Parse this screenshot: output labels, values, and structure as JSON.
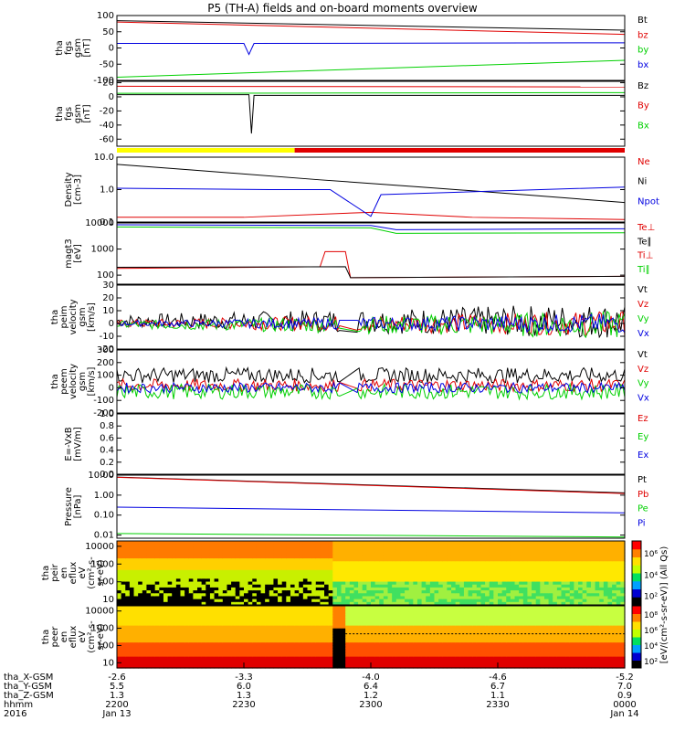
{
  "title": "P5 (TH-A) fields and on-board moments overview",
  "colors": {
    "black": "#000000",
    "red": "#e00000",
    "green": "#00d000",
    "blue": "#0000e0",
    "yellow": "#ffff00"
  },
  "chart_data": [
    {
      "type": "line",
      "id": "fgs_gsm",
      "ylabel": [
        "tha",
        "fgs",
        "gsm",
        "[nT]"
      ],
      "ylim": [
        -100,
        100
      ],
      "yticks": [
        -100,
        -50,
        0,
        50,
        100
      ],
      "legend": [
        "Bt",
        "bz",
        "by",
        "bx"
      ],
      "legend_colors": [
        "black",
        "red",
        "green",
        "blue"
      ],
      "series": [
        {
          "name": "Bt",
          "color": "black",
          "x": [
            0,
            1
          ],
          "y": [
            84,
            55
          ]
        },
        {
          "name": "bz",
          "color": "red",
          "x": [
            0,
            1
          ],
          "y": [
            80,
            42
          ]
        },
        {
          "name": "by",
          "color": "green",
          "x": [
            0,
            1
          ],
          "y": [
            -90,
            -38
          ]
        },
        {
          "name": "bx",
          "color": "blue",
          "x": [
            0,
            0.25,
            0.26,
            0.27,
            1
          ],
          "y": [
            14,
            14,
            -20,
            14,
            16
          ]
        }
      ]
    },
    {
      "type": "line",
      "id": "fgs_gse",
      "ylabel": [
        "tha",
        "fgs",
        "gsm",
        "[nT]"
      ],
      "ylim": [
        -70,
        22
      ],
      "yticks": [
        -60,
        -40,
        -20,
        0,
        20
      ],
      "legend": [
        "Bz",
        "By",
        "Bx"
      ],
      "legend_colors": [
        "black",
        "red",
        "green"
      ],
      "series": [
        {
          "name": "Bz",
          "color": "red",
          "x": [
            0,
            1
          ],
          "y": [
            15,
            14
          ]
        },
        {
          "name": "By",
          "color": "green",
          "x": [
            0,
            1
          ],
          "y": [
            5,
            6
          ]
        },
        {
          "name": "Bx",
          "color": "black",
          "x": [
            0,
            0.26,
            0.265,
            0.27,
            1
          ],
          "y": [
            3,
            3,
            -52,
            2,
            2
          ]
        }
      ]
    },
    {
      "type": "line",
      "id": "density",
      "log": true,
      "ylabel": [
        "Density",
        "[cm-3]"
      ],
      "ylim": [
        0.1,
        10
      ],
      "yticks": [
        "0.1",
        "1.0",
        "10.0"
      ],
      "ytick_values": [
        0.1,
        1,
        10
      ],
      "legend": [
        "Ne",
        "Ni",
        "Npot"
      ],
      "legend_colors": [
        "red",
        "black",
        "blue"
      ],
      "series": [
        {
          "name": "Ne",
          "color": "red",
          "x": [
            0,
            0.25,
            0.5,
            0.7,
            1
          ],
          "y": [
            0.14,
            0.14,
            0.2,
            0.14,
            0.12
          ]
        },
        {
          "name": "Ni",
          "color": "black",
          "x": [
            0,
            0.15,
            0.4,
            0.6,
            0.8,
            1
          ],
          "y": [
            6,
            4,
            2,
            1.2,
            0.7,
            0.4
          ]
        },
        {
          "name": "Npot",
          "color": "blue",
          "x": [
            0,
            0.3,
            0.42,
            0.5,
            0.52,
            1
          ],
          "y": [
            1.1,
            1.0,
            1.0,
            0.15,
            0.7,
            1.2
          ]
        }
      ]
    },
    {
      "type": "line",
      "id": "temperature",
      "log": true,
      "ylabel": [
        "magt3",
        "[eV]"
      ],
      "ylim": [
        45,
        10000
      ],
      "yticks": [
        "100",
        "1000",
        "10000"
      ],
      "ytick_values": [
        100,
        1000,
        10000
      ],
      "legend": [
        "Te⊥",
        "Te∥",
        "Ti⊥",
        "Ti∥"
      ],
      "legend_colors": [
        "red",
        "black",
        "red",
        "green"
      ],
      "series": [
        {
          "name": "Ti⊥",
          "color": "green",
          "x": [
            0,
            0.5,
            0.55,
            1
          ],
          "y": [
            7000,
            6500,
            4000,
            4200
          ]
        },
        {
          "name": "Te∥",
          "color": "blue",
          "x": [
            0,
            0.5,
            0.55,
            1
          ],
          "y": [
            8500,
            8000,
            5500,
            6000
          ]
        },
        {
          "name": "Ti∥",
          "color": "red",
          "x": [
            0,
            0.4,
            0.41,
            0.45,
            0.46,
            1
          ],
          "y": [
            180,
            210,
            800,
            800,
            80,
            90
          ]
        },
        {
          "name": "Te⊥",
          "color": "black",
          "x": [
            0,
            0.45,
            0.46,
            1
          ],
          "y": [
            200,
            210,
            80,
            90
          ]
        }
      ]
    },
    {
      "type": "line",
      "id": "ion_velocity",
      "ylabel": [
        "tha",
        "peim",
        "velocity",
        "gsm",
        "[km/s]"
      ],
      "ylim": [
        -20,
        30
      ],
      "yticks": [
        -20,
        -10,
        0,
        10,
        20,
        30
      ],
      "legend": [
        "Vt",
        "Vz",
        "Vy",
        "Vx"
      ],
      "legend_colors": [
        "black",
        "red",
        "green",
        "blue"
      ],
      "series": [
        {
          "name": "Vt",
          "color": "black",
          "amp": [
            5,
            14
          ],
          "base": 2
        },
        {
          "name": "Vz",
          "color": "red",
          "amp": [
            3,
            10
          ],
          "base": 0
        },
        {
          "name": "Vy",
          "color": "green",
          "amp": [
            3,
            11
          ],
          "base": -1
        },
        {
          "name": "Vx",
          "color": "blue",
          "amp": [
            2,
            8
          ],
          "base": 0
        }
      ]
    },
    {
      "type": "line",
      "id": "electron_velocity",
      "ylabel": [
        "tha",
        "peem",
        "velocity",
        "gsm",
        "[km/s]"
      ],
      "ylim": [
        -200,
        300
      ],
      "yticks": [
        -200,
        -100,
        0,
        100,
        200,
        300
      ],
      "legend": [
        "Vt",
        "Vz",
        "Vy",
        "Vx"
      ],
      "legend_colors": [
        "black",
        "red",
        "green",
        "blue"
      ],
      "series": [
        {
          "name": "Vt",
          "color": "black",
          "amp": [
            60,
            60
          ],
          "base": 100
        },
        {
          "name": "Vz",
          "color": "red",
          "amp": [
            50,
            50
          ],
          "base": 20
        },
        {
          "name": "Vy",
          "color": "green",
          "amp": [
            60,
            60
          ],
          "base": -30
        },
        {
          "name": "Vx",
          "color": "blue",
          "amp": [
            40,
            40
          ],
          "base": 0
        }
      ]
    },
    {
      "type": "line",
      "id": "efield",
      "ylabel": [
        "E=-VxB",
        "[mV/m]"
      ],
      "ylim": [
        0,
        1
      ],
      "yticks": [
        "0.0",
        "0.2",
        "0.4",
        "0.6",
        "0.8",
        "1.0"
      ],
      "ytick_values": [
        0,
        0.2,
        0.4,
        0.6,
        0.8,
        1
      ],
      "legend": [
        "Ez",
        "Ey",
        "Ex"
      ],
      "legend_colors": [
        "red",
        "green",
        "blue"
      ],
      "series": []
    },
    {
      "type": "line",
      "id": "pressure",
      "log": true,
      "ylabel": [
        "Pressure",
        "[nPa]"
      ],
      "ylim": [
        0.007,
        10
      ],
      "yticks": [
        "0.01",
        "0.10",
        "1.00",
        "10.00"
      ],
      "ytick_values": [
        0.01,
        0.1,
        1,
        10
      ],
      "legend": [
        "Pt",
        "Pb",
        "Pe",
        "Pi"
      ],
      "legend_colors": [
        "black",
        "red",
        "green",
        "blue"
      ],
      "series": [
        {
          "name": "Pt",
          "color": "black",
          "x": [
            0,
            1
          ],
          "y": [
            8,
            1.3
          ]
        },
        {
          "name": "Pb",
          "color": "red",
          "x": [
            0,
            1
          ],
          "y": [
            7.8,
            1.2
          ]
        },
        {
          "name": "Pe",
          "color": "blue",
          "x": [
            0,
            1
          ],
          "y": [
            0.25,
            0.13
          ]
        },
        {
          "name": "Pi",
          "color": "green",
          "x": [
            0,
            1
          ],
          "y": [
            0.012,
            0.008
          ]
        }
      ]
    },
    {
      "type": "heatmap",
      "id": "ion_spectrogram",
      "ylabel": [
        "tha",
        "peir",
        "en",
        "eflux",
        "eV",
        "(cm²-s-",
        "sr-eV)"
      ],
      "yticks": [
        "10",
        "100",
        "1000",
        "10000"
      ],
      "ytick_values": [
        10,
        100,
        1000,
        10000
      ],
      "colorbar_ticks": [
        "10⁶",
        "10⁴",
        "10²"
      ]
    },
    {
      "type": "heatmap",
      "id": "electron_spectrogram",
      "ylabel": [
        "tha",
        "peer",
        "en",
        "eflux",
        "eV",
        "(cm²-s-",
        "sr-eV)"
      ],
      "yticks": [
        "10",
        "100",
        "1000",
        "10000"
      ],
      "ytick_values": [
        10,
        100,
        1000,
        10000
      ],
      "colorbar_ticks": [
        "10⁸",
        "10⁶",
        "10⁴",
        "10²"
      ]
    }
  ],
  "colorbar_label": "[eV/(cm²-s-sr-eV)] (All Qs)",
  "mode_bar": [
    {
      "from": 0,
      "to": 0.35,
      "color": "yellow"
    },
    {
      "from": 0.35,
      "to": 1,
      "color": "red"
    }
  ],
  "x_axis": {
    "rows": [
      {
        "label": "tha_X-GSM",
        "values": [
          "-2.6",
          "-3.3",
          "-4.0",
          "-4.6",
          "-5.2"
        ]
      },
      {
        "label": "tha_Y-GSM",
        "values": [
          "5.5",
          "6.0",
          "6.4",
          "6.7",
          "7.0"
        ]
      },
      {
        "label": "tha_Z-GSM",
        "values": [
          "1.3",
          "1.3",
          "1.2",
          "1.1",
          "0.9"
        ]
      },
      {
        "label": "hhmm",
        "values": [
          "2200",
          "2230",
          "2300",
          "2330",
          "0000"
        ]
      },
      {
        "label": "2016",
        "values": [
          "Jan 13",
          "",
          "",
          "",
          "Jan 14"
        ]
      }
    ]
  }
}
